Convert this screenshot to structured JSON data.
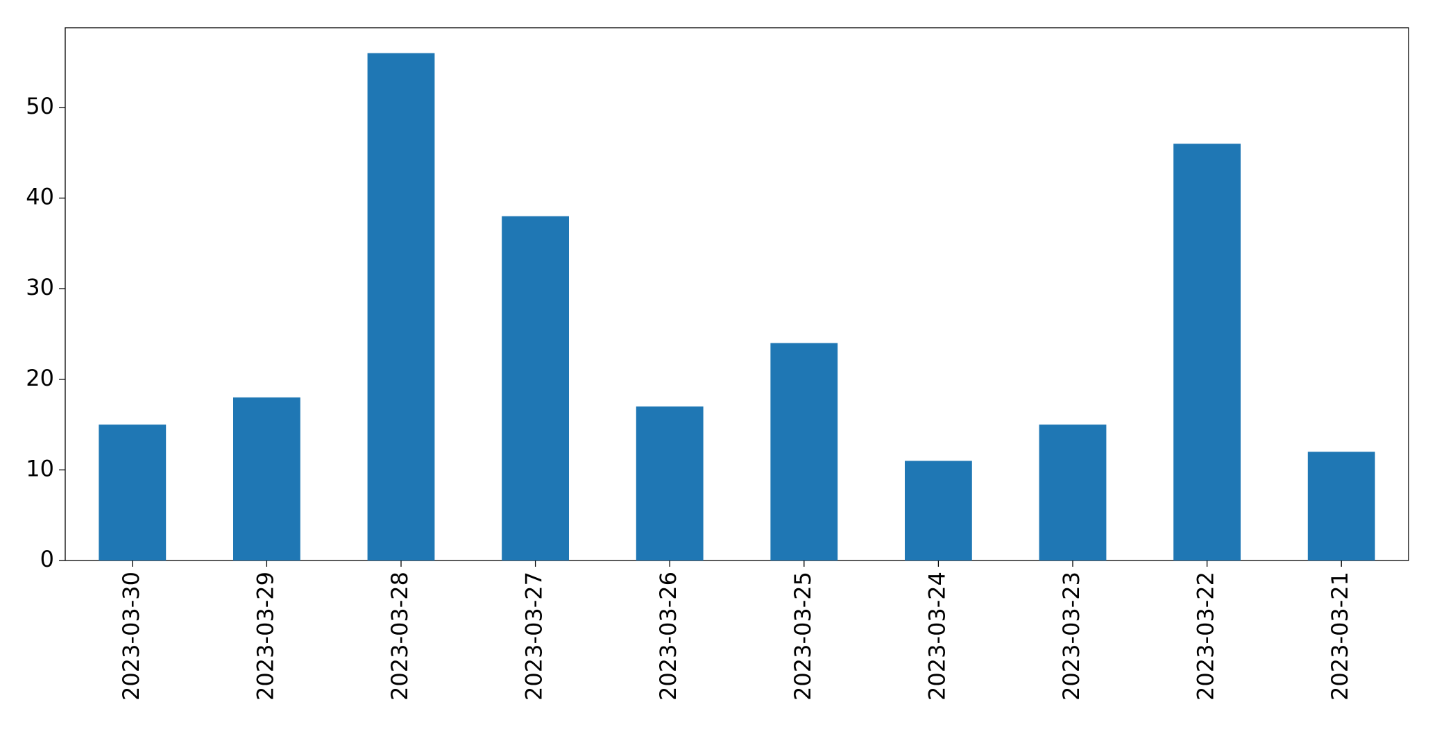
{
  "chart_data": {
    "type": "bar",
    "categories": [
      "2023-03-30",
      "2023-03-29",
      "2023-03-28",
      "2023-03-27",
      "2023-03-26",
      "2023-03-25",
      "2023-03-24",
      "2023-03-23",
      "2023-03-22",
      "2023-03-21"
    ],
    "values": [
      15,
      18,
      56,
      38,
      17,
      24,
      11,
      15,
      46,
      12
    ],
    "color": "#1f77b4",
    "ylim": [
      0,
      58.8
    ],
    "yticks": [
      0,
      10,
      20,
      30,
      40,
      50
    ],
    "grid": false
  }
}
